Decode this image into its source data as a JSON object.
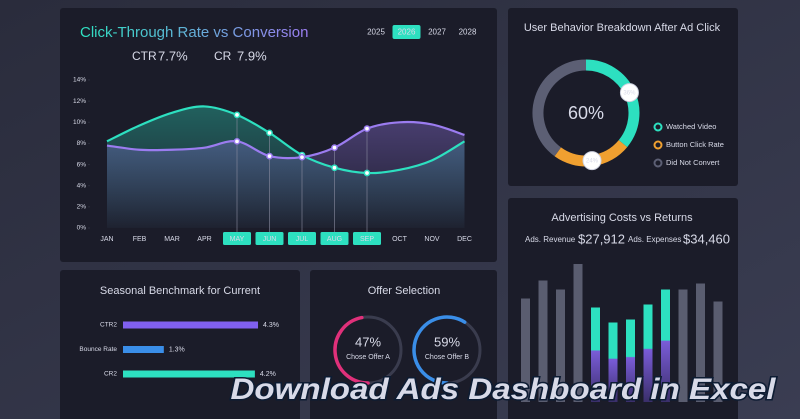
{
  "banner": "Download Ads Dashboard in Excel",
  "years": {
    "options": [
      "2025",
      "2026",
      "2027",
      "2028"
    ],
    "active": 1
  },
  "chart_data": [
    {
      "type": "line",
      "title": "Click-Through Rate vs Conversion",
      "categories": [
        "JAN",
        "FEB",
        "MAR",
        "APR",
        "MAY",
        "JUN",
        "JUL",
        "AUG",
        "SEP",
        "OCT",
        "NOV",
        "DEC"
      ],
      "highlight": [
        4,
        5,
        6,
        7,
        8
      ],
      "series": [
        {
          "name": "CTR",
          "color": "#2de0c0",
          "current": 7.7,
          "current_label": "7.7%",
          "values": [
            8.2,
            9.7,
            10.9,
            11.5,
            10.7,
            9.0,
            6.9,
            5.7,
            5.2,
            5.5,
            6.4,
            8.2
          ]
        },
        {
          "name": "CR",
          "color": "#9b7cf0",
          "current": 7.9,
          "current_label": "7.9%",
          "values": [
            7.8,
            7.4,
            7.4,
            7.6,
            8.2,
            6.8,
            6.7,
            7.6,
            9.4,
            10.0,
            9.8,
            8.8
          ]
        }
      ],
      "ylim": [
        0,
        14
      ],
      "yticks": [
        {
          "value": 0,
          "label": "0%"
        },
        {
          "value": 2,
          "label": "2%"
        },
        {
          "value": 4,
          "label": "4%"
        },
        {
          "value": 6,
          "label": "6%"
        },
        {
          "value": 8,
          "label": "8%"
        },
        {
          "value": 10,
          "label": "10%"
        },
        {
          "value": 12,
          "label": "12%"
        },
        {
          "value": 14,
          "label": "14%"
        }
      ]
    },
    {
      "type": "donut",
      "title": "User Behavior Breakdown After Ad Click",
      "center_label": "60%",
      "categories": [
        "Watched Video",
        "Button Click Rate",
        "Did Not Convert"
      ],
      "values": [
        36,
        24,
        40
      ],
      "value_labels": [
        "36%",
        "24%",
        null
      ],
      "colors": [
        "#2de0c0",
        "#f0a030",
        "#5c5f74"
      ]
    },
    {
      "type": "bar",
      "title": "Advertising Costs vs Returns",
      "series": [
        {
          "name": "Ads. Revenue",
          "color": "#2de0c0",
          "total": 27912,
          "total_label": "$27,912",
          "values": [
            null,
            null,
            null,
            null,
            63,
            53,
            55,
            65,
            75,
            null,
            null,
            null
          ]
        },
        {
          "name": "Ads. Expenses",
          "color": "#5a5d70",
          "total": 34460,
          "total_label": "$34,460",
          "values": [
            69,
            81,
            75,
            92,
            60,
            50,
            45,
            48,
            58,
            75,
            79,
            67
          ]
        }
      ]
    },
    {
      "type": "hbar",
      "title": "Seasonal Benchmark for Current",
      "categories": [
        "CTR2",
        "Bounce Rate",
        "CR2"
      ],
      "values": [
        4.3,
        1.3,
        4.2
      ],
      "value_labels": [
        "4.3%",
        "1.3%",
        "4.2%"
      ],
      "colors": [
        "#8060f0",
        "#3a8ee8",
        "#2de0c0"
      ]
    },
    {
      "type": "gauge",
      "title": "Offer Selection",
      "categories": [
        "Chose Offer A",
        "Chose Offer B"
      ],
      "values": [
        47,
        59
      ],
      "value_labels": [
        "47%",
        "59%"
      ],
      "colors": [
        "#e0307a",
        "#3a8ee8"
      ]
    }
  ]
}
